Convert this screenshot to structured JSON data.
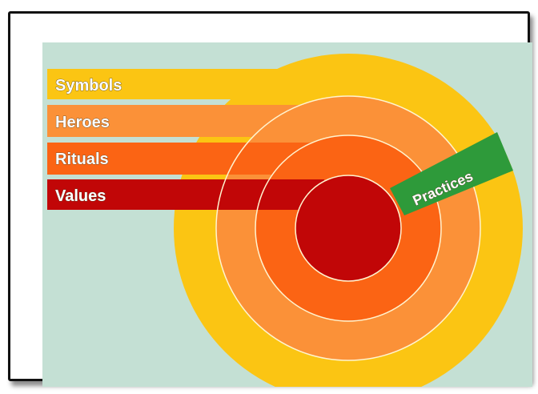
{
  "diagram": {
    "colors": {
      "background": "#c4e0d4",
      "symbols": "#fbc513",
      "heroes": "#fb9138",
      "rituals": "#fb6414",
      "values": "#c10607",
      "practices": "#2e9a3a",
      "separator": "#fff4d0"
    },
    "layers": [
      {
        "id": "symbols",
        "label": "Symbols"
      },
      {
        "id": "heroes",
        "label": "Heroes"
      },
      {
        "id": "rituals",
        "label": "Rituals"
      },
      {
        "id": "values",
        "label": "Values"
      }
    ],
    "practices_label": "Practices"
  }
}
